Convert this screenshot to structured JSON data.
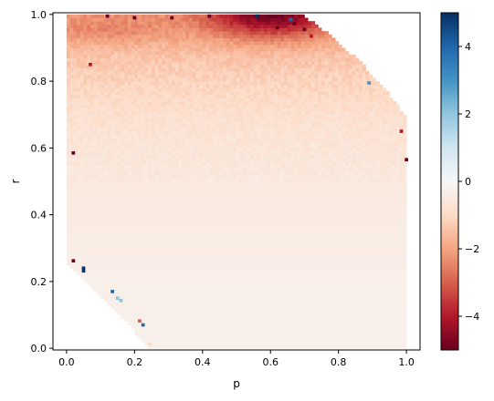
{
  "chart_data": {
    "type": "heatmap",
    "title": "",
    "xlabel": "p",
    "ylabel": "r",
    "xlim": [
      -0.04,
      1.04
    ],
    "ylim": [
      -0.005,
      1.005
    ],
    "x_ticks": [
      0.0,
      0.2,
      0.4,
      0.6,
      0.8,
      1.0
    ],
    "x_tick_labels": [
      "0.0",
      "0.2",
      "0.4",
      "0.6",
      "0.8",
      "1.0"
    ],
    "y_ticks": [
      0.0,
      0.2,
      0.4,
      0.6,
      0.8,
      1.0
    ],
    "y_tick_labels": [
      "0.0",
      "0.2",
      "0.4",
      "0.6",
      "0.8",
      "1.0"
    ],
    "colormap": "RdBu",
    "vmin": -5,
    "vmax": 5,
    "colorbar_ticks": [
      -4,
      -2,
      0,
      2,
      4
    ],
    "colorbar_tick_labels": [
      "−4",
      "−2",
      "0",
      "2",
      "4"
    ],
    "grid": false,
    "region": {
      "p_range": [
        0.0,
        1.0
      ],
      "r_range": [
        0.0,
        1.0
      ],
      "upper_right_boundary": "p² + r² ≤ 1.48 (approx.)",
      "lower_left_boundary": "empty below r ≈ 0.26 − 1.05 p (approx.)"
    },
    "value_trend": "near 0 at low r, decreasing to about −2 at r≈0.8, about −4 to −5 at r≈1 near p≈0.55–0.7",
    "outlier_points": [
      {
        "p": 0.02,
        "r": 0.262,
        "value": -5
      },
      {
        "p": 0.05,
        "r": 0.24,
        "value": 5
      },
      {
        "p": 0.05,
        "r": 0.232,
        "value": 5
      },
      {
        "p": 0.135,
        "r": 0.17,
        "value": 4
      },
      {
        "p": 0.15,
        "r": 0.15,
        "value": 2
      },
      {
        "p": 0.16,
        "r": 0.143,
        "value": 2
      },
      {
        "p": 0.215,
        "r": 0.082,
        "value": -3
      },
      {
        "p": 0.225,
        "r": 0.07,
        "value": 4
      },
      {
        "p": 0.245,
        "r": 0.012,
        "value": -1
      },
      {
        "p": 0.02,
        "r": 0.585,
        "value": -5
      },
      {
        "p": 0.07,
        "r": 0.85,
        "value": -4
      },
      {
        "p": 0.89,
        "r": 0.795,
        "value": 3
      },
      {
        "p": 0.985,
        "r": 0.65,
        "value": -4
      },
      {
        "p": 1.0,
        "r": 0.565,
        "value": -5
      },
      {
        "p": 0.56,
        "r": 0.995,
        "value": 5
      },
      {
        "p": 0.66,
        "r": 0.985,
        "value": 4
      },
      {
        "p": 0.62,
        "r": 0.96,
        "value": -5
      },
      {
        "p": 0.67,
        "r": 0.972,
        "value": -5
      },
      {
        "p": 0.7,
        "r": 0.955,
        "value": -5
      },
      {
        "p": 0.72,
        "r": 0.935,
        "value": -4
      },
      {
        "p": 0.2,
        "r": 0.99,
        "value": -5
      },
      {
        "p": 0.12,
        "r": 0.995,
        "value": -5
      },
      {
        "p": 0.31,
        "r": 0.99,
        "value": -5
      },
      {
        "p": 0.42,
        "r": 0.995,
        "value": -5
      }
    ]
  }
}
